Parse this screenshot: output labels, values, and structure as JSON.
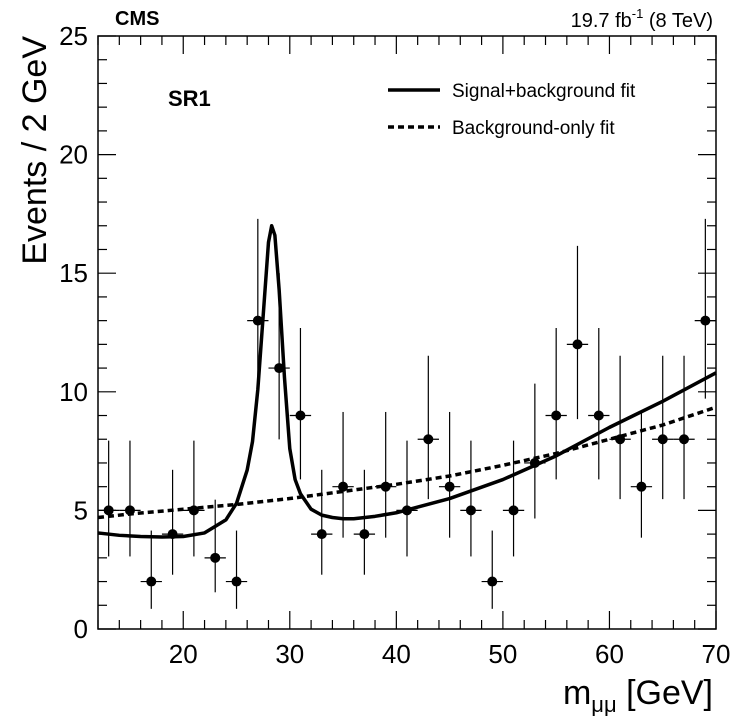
{
  "header": {
    "experiment": "CMS",
    "lumi_value": "19.7 fb",
    "lumi_sup": "-1",
    "energy": " (8 TeV)"
  },
  "chart_data": {
    "type": "scatter",
    "region_label": "SR1",
    "xlabel_main": "m",
    "xlabel_sub": "μμ",
    "xlabel_unit": " [GeV]",
    "ylabel": "Events / 2 GeV",
    "xlim": [
      12,
      70
    ],
    "ylim": [
      0,
      25
    ],
    "x_ticks": [
      20,
      30,
      40,
      50,
      60,
      70
    ],
    "y_ticks": [
      0,
      5,
      10,
      15,
      20,
      25
    ],
    "legend_position": "top-right",
    "legend": [
      {
        "label": "Signal+background fit",
        "style": "solid"
      },
      {
        "label": "Background-only fit",
        "style": "dashed"
      }
    ],
    "points": {
      "x": [
        13,
        15,
        17,
        19,
        21,
        23,
        25,
        27,
        29,
        31,
        33,
        35,
        37,
        39,
        41,
        43,
        45,
        47,
        49,
        51,
        53,
        55,
        57,
        59,
        61,
        63,
        65,
        67,
        69
      ],
      "y": [
        5,
        5,
        2,
        4,
        5,
        3,
        2,
        13,
        11,
        9,
        4,
        6,
        4,
        6,
        5,
        8,
        6,
        5,
        2,
        5,
        7,
        9,
        12,
        9,
        8,
        6,
        8,
        8,
        13
      ],
      "x_err": 1
    },
    "series": [
      {
        "style": "solid",
        "x": [
          12,
          14,
          16,
          18,
          20,
          22,
          24,
          25,
          26,
          26.5,
          27,
          27.5,
          28,
          28.3,
          28.6,
          29,
          29.5,
          30,
          30.5,
          31,
          32,
          33,
          34,
          35,
          36,
          38,
          40,
          45,
          50,
          55,
          60,
          65,
          70
        ],
        "y": [
          4.05,
          3.95,
          3.9,
          3.88,
          3.9,
          4.05,
          4.6,
          5.3,
          6.7,
          7.9,
          10.1,
          13.2,
          16.3,
          17.0,
          16.6,
          14.3,
          10.6,
          7.6,
          6.3,
          5.7,
          5.05,
          4.8,
          4.7,
          4.65,
          4.65,
          4.75,
          4.9,
          5.5,
          6.3,
          7.3,
          8.5,
          9.6,
          10.8
        ]
      },
      {
        "style": "dashed",
        "x": [
          12,
          15,
          20,
          25,
          30,
          35,
          40,
          45,
          50,
          55,
          60,
          65,
          70
        ],
        "y": [
          4.7,
          4.85,
          5.05,
          5.25,
          5.5,
          5.8,
          6.1,
          6.45,
          6.9,
          7.4,
          8.0,
          8.6,
          9.35
        ]
      }
    ]
  }
}
